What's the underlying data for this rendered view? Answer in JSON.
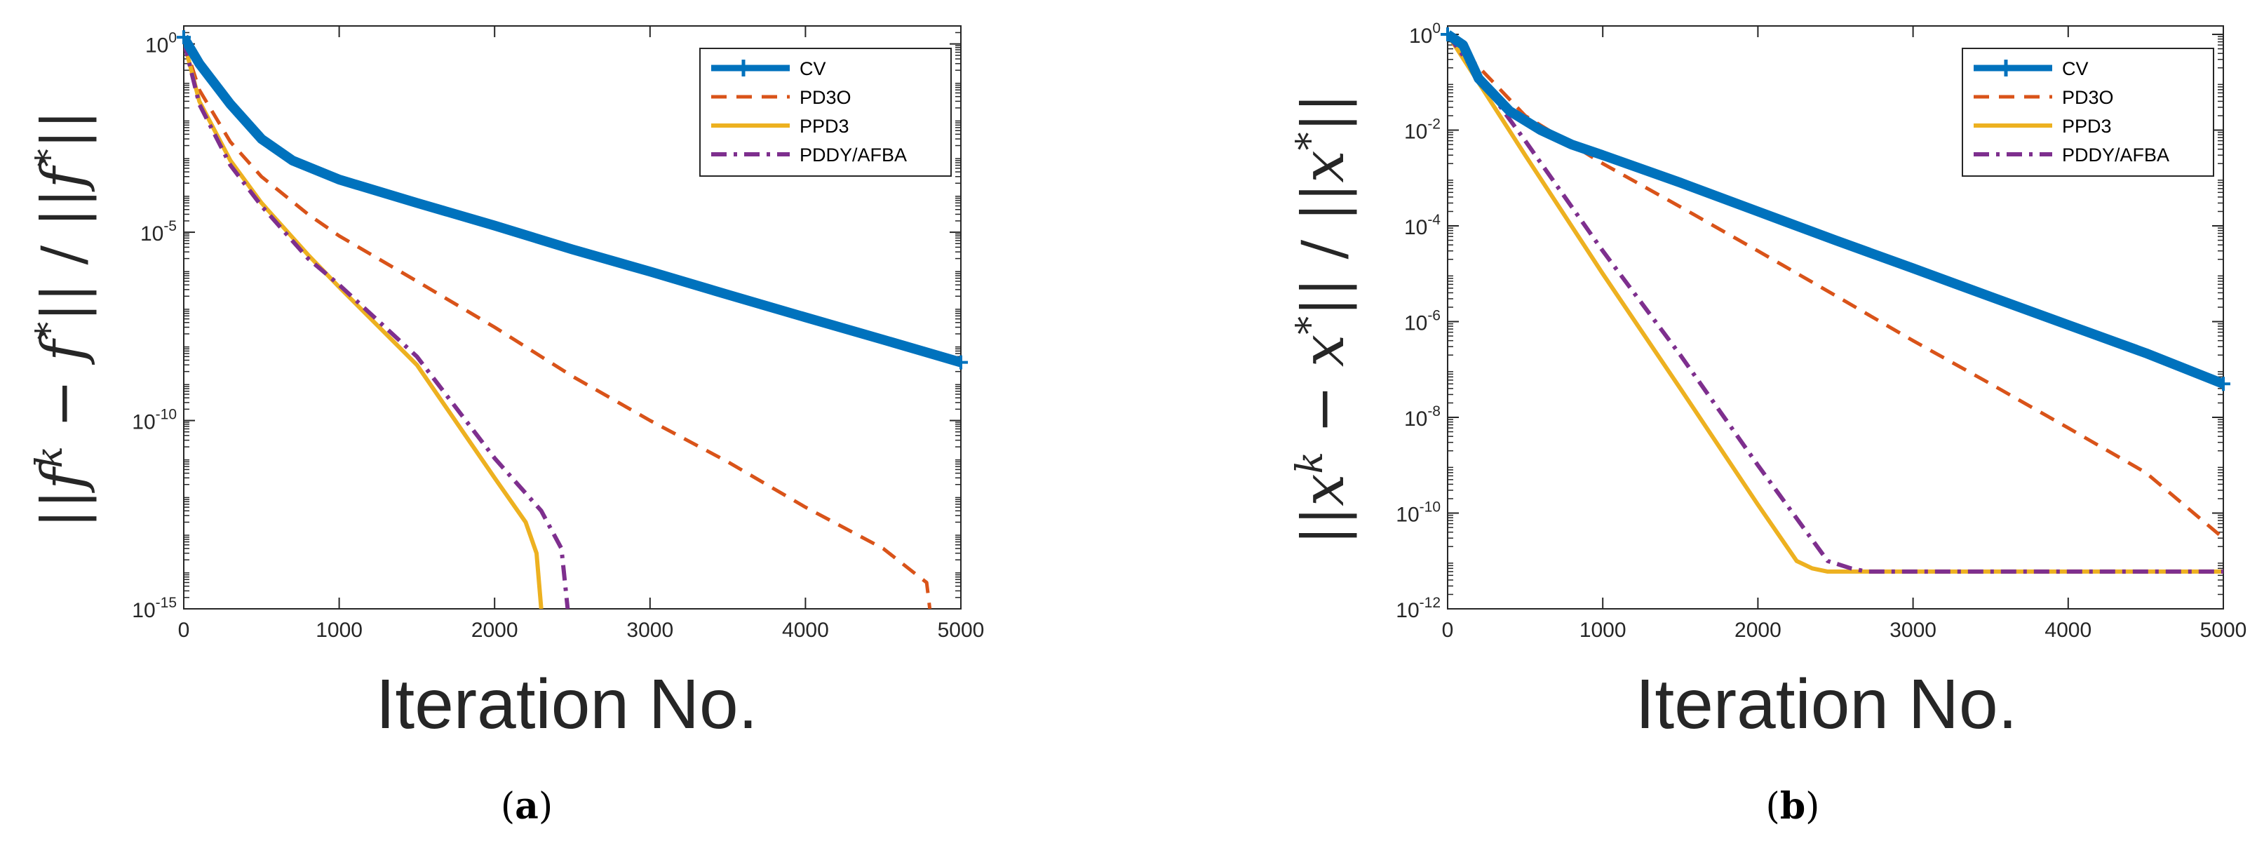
{
  "colors": {
    "CV": "#0072BD",
    "PD3O": "#D95319",
    "PPD3": "#EDB120",
    "PDDY/AFBA": "#7E2F8E",
    "axis": "#262626",
    "grid": "#d9d9d9"
  },
  "chart_data": [
    {
      "type": "line",
      "panel": "a",
      "caption": "(a)",
      "caption_letter": "a",
      "xlabel": "Iteration    No.",
      "ylabel": "||f^k − f*|| / ||f*||",
      "ylabel_parts": [
        "||",
        "f",
        "k",
        " − ",
        "f",
        "*",
        "|| / ||",
        "f",
        "*",
        "||"
      ],
      "xscale": "linear",
      "yscale": "log",
      "xlim": [
        0,
        5000
      ],
      "ylim": [
        1e-15,
        3
      ],
      "xticks": [
        0,
        1000,
        2000,
        3000,
        4000,
        5000
      ],
      "xtick_labels": [
        "0",
        "1000",
        "2000",
        "3000",
        "4000",
        "5000"
      ],
      "yticks": [
        1e-15,
        1e-10,
        1e-05,
        1
      ],
      "ytick_labels": [
        {
          "base": "10",
          "exp": "-15"
        },
        {
          "base": "10",
          "exp": "-10"
        },
        {
          "base": "10",
          "exp": "-5"
        },
        {
          "base": "10",
          "exp": "0"
        }
      ],
      "legend_position": "top-right",
      "series": [
        {
          "name": "CV",
          "style": "solid-thick-plus",
          "x": [
            0,
            100,
            300,
            500,
            700,
            1000,
            1500,
            2000,
            2500,
            3000,
            3500,
            4000,
            4500,
            5000
          ],
          "y": [
            1.5,
            0.3,
            0.025,
            0.003,
            0.0008,
            0.00025,
            6e-05,
            1.5e-05,
            3.5e-06,
            9e-07,
            2.2e-07,
            5.5e-08,
            1.4e-08,
            3.5e-09
          ]
        },
        {
          "name": "PD3O",
          "style": "dashed",
          "x": [
            0,
            100,
            300,
            500,
            800,
            1000,
            1500,
            2000,
            2500,
            3000,
            3500,
            4000,
            4500,
            4700,
            4780,
            4800
          ],
          "y": [
            1.2,
            0.06,
            0.0025,
            0.0003,
            3e-05,
            8e-06,
            5e-07,
            3e-08,
            1.5e-09,
            1e-10,
            8e-12,
            5e-13,
            4e-14,
            9e-15,
            5e-15,
            1e-15
          ]
        },
        {
          "name": "PPD3",
          "style": "solid",
          "x": [
            0,
            100,
            300,
            500,
            800,
            1000,
            1500,
            2000,
            2200,
            2270,
            2300
          ],
          "y": [
            1.2,
            0.03,
            0.0008,
            6e-05,
            2.5e-06,
            3.5e-07,
            3e-09,
            3e-12,
            2e-13,
            3e-14,
            1e-15
          ]
        },
        {
          "name": "PDDY/AFBA",
          "style": "dashdot",
          "x": [
            0,
            100,
            300,
            500,
            800,
            1000,
            1500,
            2000,
            2300,
            2430,
            2470
          ],
          "y": [
            1.2,
            0.025,
            0.0006,
            5e-05,
            2e-06,
            4e-07,
            5e-09,
            1e-11,
            4e-13,
            4e-14,
            1e-15
          ]
        }
      ]
    },
    {
      "type": "line",
      "panel": "b",
      "caption": "(b)",
      "caption_letter": "b",
      "xlabel": "Iteration    No.",
      "ylabel": "||x^k − x*|| / ||x*||",
      "ylabel_parts": [
        "||",
        "x",
        "k",
        " − ",
        "x",
        "*",
        "|| / ||",
        "x",
        "*",
        "||"
      ],
      "xscale": "linear",
      "yscale": "log",
      "xlim": [
        0,
        5000
      ],
      "ylim": [
        1e-12,
        1.5
      ],
      "xticks": [
        0,
        1000,
        2000,
        3000,
        4000,
        5000
      ],
      "xtick_labels": [
        "0",
        "1000",
        "2000",
        "3000",
        "4000",
        "5000"
      ],
      "yticks": [
        1e-12,
        1e-10,
        1e-08,
        1e-06,
        0.0001,
        0.01,
        1
      ],
      "ytick_labels": [
        {
          "base": "10",
          "exp": "-12"
        },
        {
          "base": "10",
          "exp": "-10"
        },
        {
          "base": "10",
          "exp": "-8"
        },
        {
          "base": "10",
          "exp": "-6"
        },
        {
          "base": "10",
          "exp": "-4"
        },
        {
          "base": "10",
          "exp": "-2"
        },
        {
          "base": "10",
          "exp": "0"
        }
      ],
      "legend_position": "top-right",
      "series": [
        {
          "name": "CV",
          "style": "solid-thick-plus",
          "x": [
            0,
            100,
            200,
            400,
            600,
            800,
            1000,
            1500,
            2000,
            2500,
            3000,
            3500,
            4000,
            4500,
            5000
          ],
          "y": [
            1.0,
            0.6,
            0.12,
            0.025,
            0.01,
            0.005,
            0.003,
            0.0008,
            0.0002,
            5e-05,
            1.3e-05,
            3.3e-06,
            8.5e-07,
            2.2e-07,
            5e-08
          ]
        },
        {
          "name": "PD3O",
          "style": "dashed",
          "x": [
            0,
            500,
            1000,
            1500,
            2000,
            2500,
            3000,
            3500,
            4000,
            4500,
            5000
          ],
          "y": [
            1.0,
            0.02,
            0.002,
            0.00025,
            3e-05,
            3.5e-06,
            4e-07,
            5e-08,
            6e-09,
            7e-10,
            3e-11
          ]
        },
        {
          "name": "PPD3",
          "style": "solid",
          "x": [
            0,
            500,
            1000,
            1500,
            2000,
            2250,
            2350,
            2450,
            3000,
            4000,
            5000
          ],
          "y": [
            1.0,
            0.003,
            1e-05,
            4e-08,
            1.5e-10,
            1e-11,
            7e-12,
            6e-12,
            6e-12,
            6e-12,
            6e-12
          ]
        },
        {
          "name": "PDDY/AFBA",
          "style": "dashdot",
          "x": [
            0,
            500,
            1000,
            1500,
            2000,
            2450,
            2600,
            2700,
            3000,
            4000,
            5000
          ],
          "y": [
            1.0,
            0.006,
            3e-05,
            2e-07,
            1e-09,
            1e-11,
            7e-12,
            6e-12,
            6e-12,
            6e-12,
            6e-12
          ]
        }
      ]
    }
  ]
}
